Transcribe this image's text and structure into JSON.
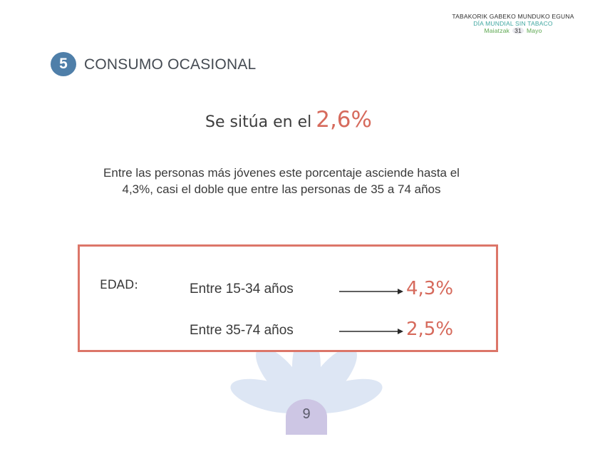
{
  "header": {
    "line1": "TABAKORIK GABEKO MUNDUKO EGUNA",
    "line2": "DÍA MUNDIAL SIN TABACO",
    "line3_left": "Maiatzak",
    "line3_day": "31",
    "line3_right": "Mayo"
  },
  "section": {
    "number": "5",
    "title": "CONSUMO OCASIONAL"
  },
  "lead": {
    "text": "Se sitúa en el",
    "value": "2,6%"
  },
  "paragraph": "Entre las personas más jóvenes este porcentaje asciende hasta el 4,3%, casi el doble que entre las personas de 35 a 74 años",
  "age_box": {
    "label": "EDAD:",
    "rows": [
      {
        "label": "Entre 15-34 años",
        "value": "4,3%"
      },
      {
        "label": "Entre 35-74 años",
        "value": "2,5%"
      }
    ]
  },
  "page_number": "9",
  "colors": {
    "accent": "#d66a5c",
    "box_border": "#dc7669",
    "section_badge": "#4f7fa9",
    "flower_petals": "#dde6f4",
    "page_badge": "#cdc6e4"
  },
  "icons": {
    "arrow": "arrow-right-icon",
    "flower": "flower-icon"
  }
}
